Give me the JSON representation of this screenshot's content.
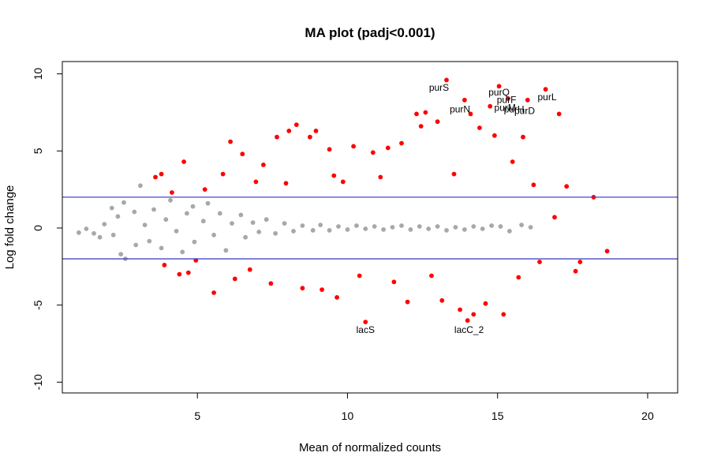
{
  "chart_data": {
    "type": "scatter",
    "title": "MA plot (padj<0.001)",
    "xlabel": "Mean of normalized counts",
    "ylabel": "Log fold change",
    "xlim": [
      0.5,
      21
    ],
    "ylim": [
      -10.7,
      10.8
    ],
    "xticks": [
      5,
      10,
      15,
      20
    ],
    "yticks": [
      -10,
      -5,
      0,
      5,
      10
    ],
    "grid": false,
    "legend": "none",
    "threshold_lines": [
      2,
      -2
    ],
    "colors": {
      "significant": "#ff0000",
      "not_significant": "#a8a8a8",
      "threshold_line": "#4646c8",
      "axis": "#000000"
    },
    "series": [
      {
        "key": "not_significant",
        "color": "#a8a8a8",
        "points": [
          [
            1.05,
            -0.3
          ],
          [
            1.3,
            -0.05
          ],
          [
            1.55,
            -0.35
          ],
          [
            1.9,
            0.25
          ],
          [
            1.75,
            -0.6
          ],
          [
            2.15,
            1.3
          ],
          [
            2.35,
            0.75
          ],
          [
            2.55,
            1.65
          ],
          [
            2.2,
            -0.45
          ],
          [
            2.45,
            -1.7
          ],
          [
            2.6,
            -2.0
          ],
          [
            2.9,
            1.05
          ],
          [
            3.1,
            2.75
          ],
          [
            2.95,
            -1.1
          ],
          [
            3.25,
            0.2
          ],
          [
            3.4,
            -0.85
          ],
          [
            3.55,
            1.2
          ],
          [
            3.8,
            -1.3
          ],
          [
            3.95,
            0.55
          ],
          [
            4.1,
            1.8
          ],
          [
            4.3,
            -0.2
          ],
          [
            4.5,
            -1.55
          ],
          [
            4.65,
            0.95
          ],
          [
            4.85,
            1.4
          ],
          [
            4.9,
            -0.9
          ],
          [
            5.2,
            0.45
          ],
          [
            5.35,
            1.6
          ],
          [
            5.55,
            -0.45
          ],
          [
            5.75,
            0.95
          ],
          [
            5.95,
            -1.45
          ],
          [
            6.15,
            0.3
          ],
          [
            6.45,
            0.85
          ],
          [
            6.6,
            -0.6
          ],
          [
            6.85,
            0.35
          ],
          [
            7.05,
            -0.25
          ],
          [
            7.3,
            0.55
          ],
          [
            7.6,
            -0.35
          ],
          [
            7.9,
            0.3
          ],
          [
            8.2,
            -0.2
          ],
          [
            8.5,
            0.15
          ],
          [
            8.85,
            -0.15
          ],
          [
            9.1,
            0.2
          ],
          [
            9.4,
            -0.15
          ],
          [
            9.7,
            0.1
          ],
          [
            10.0,
            -0.1
          ],
          [
            10.3,
            0.15
          ],
          [
            10.6,
            -0.05
          ],
          [
            10.9,
            0.1
          ],
          [
            11.2,
            -0.1
          ],
          [
            11.5,
            0.05
          ],
          [
            11.8,
            0.15
          ],
          [
            12.1,
            -0.1
          ],
          [
            12.4,
            0.1
          ],
          [
            12.7,
            -0.05
          ],
          [
            13.0,
            0.1
          ],
          [
            13.3,
            -0.15
          ],
          [
            13.6,
            0.05
          ],
          [
            13.9,
            -0.1
          ],
          [
            14.2,
            0.1
          ],
          [
            14.5,
            -0.05
          ],
          [
            14.8,
            0.15
          ],
          [
            15.1,
            0.1
          ],
          [
            15.4,
            -0.2
          ],
          [
            15.8,
            0.2
          ],
          [
            16.1,
            0.05
          ]
        ]
      },
      {
        "key": "significant",
        "color": "#ff0000",
        "points": [
          [
            3.6,
            3.3
          ],
          [
            3.8,
            3.5
          ],
          [
            3.9,
            -2.4
          ],
          [
            4.15,
            2.3
          ],
          [
            4.4,
            -3.0
          ],
          [
            4.55,
            4.3
          ],
          [
            4.7,
            -2.9
          ],
          [
            4.95,
            -2.1
          ],
          [
            5.25,
            2.5
          ],
          [
            5.55,
            -4.2
          ],
          [
            5.85,
            3.5
          ],
          [
            6.1,
            5.6
          ],
          [
            6.25,
            -3.3
          ],
          [
            6.5,
            4.8
          ],
          [
            6.75,
            -2.7
          ],
          [
            6.95,
            3.0
          ],
          [
            7.2,
            4.1
          ],
          [
            7.45,
            -3.6
          ],
          [
            7.65,
            5.9
          ],
          [
            7.95,
            2.9
          ],
          [
            8.05,
            6.3
          ],
          [
            8.3,
            6.7
          ],
          [
            8.5,
            -3.9
          ],
          [
            8.75,
            5.9
          ],
          [
            8.95,
            6.3
          ],
          [
            9.15,
            -4.0
          ],
          [
            9.4,
            5.1
          ],
          [
            9.55,
            3.4
          ],
          [
            9.65,
            -4.5
          ],
          [
            9.85,
            3.0
          ],
          [
            10.2,
            5.3
          ],
          [
            10.4,
            -3.1
          ],
          [
            10.6,
            -6.1
          ],
          [
            10.85,
            4.9
          ],
          [
            11.1,
            3.3
          ],
          [
            11.35,
            5.2
          ],
          [
            11.55,
            -3.5
          ],
          [
            11.8,
            5.5
          ],
          [
            12.0,
            -4.8
          ],
          [
            12.3,
            7.4
          ],
          [
            12.45,
            6.6
          ],
          [
            12.6,
            7.5
          ],
          [
            12.8,
            -3.1
          ],
          [
            13.0,
            6.9
          ],
          [
            13.15,
            -4.7
          ],
          [
            13.3,
            9.6
          ],
          [
            13.55,
            3.5
          ],
          [
            13.75,
            -5.3
          ],
          [
            13.9,
            8.3
          ],
          [
            14.0,
            -6.0
          ],
          [
            14.1,
            7.4
          ],
          [
            14.2,
            -5.6
          ],
          [
            14.4,
            6.5
          ],
          [
            14.6,
            -4.9
          ],
          [
            14.75,
            7.9
          ],
          [
            14.9,
            6.0
          ],
          [
            15.05,
            9.2
          ],
          [
            15.2,
            -5.6
          ],
          [
            15.35,
            8.4
          ],
          [
            15.5,
            4.3
          ],
          [
            15.7,
            -3.2
          ],
          [
            15.85,
            5.9
          ],
          [
            16.0,
            8.3
          ],
          [
            16.2,
            2.8
          ],
          [
            16.4,
            -2.2
          ],
          [
            16.6,
            9.0
          ],
          [
            16.9,
            0.7
          ],
          [
            17.05,
            7.4
          ],
          [
            17.3,
            2.7
          ],
          [
            17.6,
            -2.8
          ],
          [
            17.75,
            -2.2
          ],
          [
            18.2,
            2.0
          ],
          [
            18.65,
            -1.5
          ]
        ]
      }
    ],
    "labels": [
      {
        "text": "purS",
        "x": 13.05,
        "y": 8.9
      },
      {
        "text": "purQ",
        "x": 15.05,
        "y": 8.6
      },
      {
        "text": "purF",
        "x": 15.3,
        "y": 8.1
      },
      {
        "text": "purL",
        "x": 16.65,
        "y": 8.3
      },
      {
        "text": "purM",
        "x": 15.25,
        "y": 7.6
      },
      {
        "text": "purH",
        "x": 15.55,
        "y": 7.5
      },
      {
        "text": "purD",
        "x": 15.9,
        "y": 7.4
      },
      {
        "text": "purN",
        "x": 13.75,
        "y": 7.5
      },
      {
        "text": "lacS",
        "x": 10.6,
        "y": -6.8
      },
      {
        "text": "lacC_2",
        "x": 14.05,
        "y": -6.8
      }
    ]
  }
}
